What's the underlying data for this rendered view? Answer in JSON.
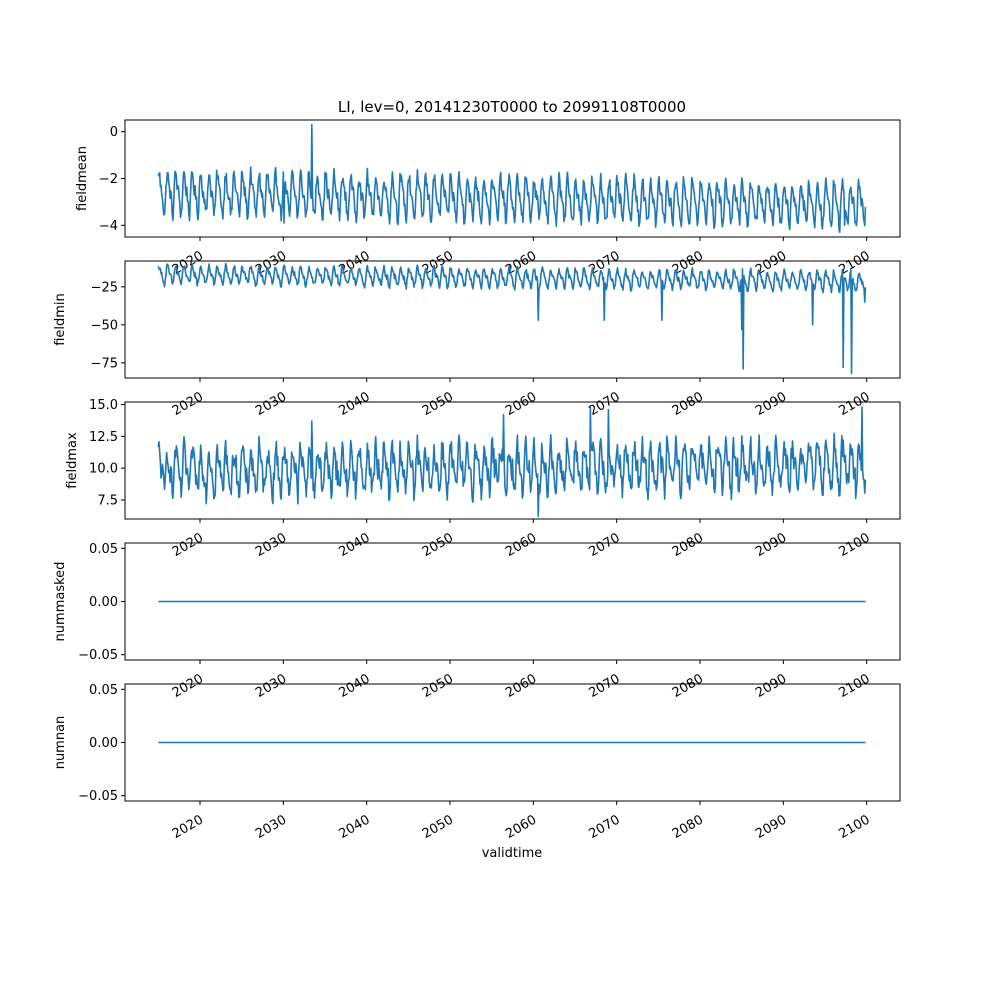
{
  "chart_data": {
    "type": "line",
    "title": "LI, lev=0, 20141230T0000 to 20991108T0000",
    "xlabel": "validtime",
    "x_start": "2014-12-30",
    "x_end": "2099-11-08",
    "xlim": [
      "2011-01-01",
      "2104-01-01"
    ],
    "x_ticks": [
      "2020",
      "2030",
      "2040",
      "2050",
      "2060",
      "2070",
      "2080",
      "2090",
      "2100"
    ],
    "grid": false,
    "line_color": "#1f77b4",
    "panels": [
      {
        "ylabel": "fieldmean",
        "ylim": [
          -4.5,
          0.5
        ],
        "y_ticks": [
          "−4",
          "−2",
          "0"
        ],
        "y_tick_values": [
          -4,
          -2,
          0
        ],
        "series": [
          {
            "kind": "seasonal",
            "base": -2.6,
            "amplitude": 0.75,
            "noise": 0.3,
            "trend_per_decade": -0.06,
            "extremes": [
              {
                "x": "2033-06-15",
                "y": 0.3
              },
              {
                "x": "2030-02-01",
                "y": -3.9
              },
              {
                "x": "2096-10-01",
                "y": -4.3
              },
              {
                "x": "2097-05-01",
                "y": -4.0
              }
            ]
          }
        ]
      },
      {
        "ylabel": "fieldmin",
        "ylim": [
          -85,
          -8
        ],
        "y_ticks": [
          "−75",
          "−50",
          "−25"
        ],
        "y_tick_values": [
          -75,
          -50,
          -25
        ],
        "series": [
          {
            "kind": "seasonal",
            "base": -17,
            "amplitude": 5,
            "noise": 2,
            "trend_per_decade": -0.5,
            "extremes": [
              {
                "x": "2060-08-01",
                "y": -47
              },
              {
                "x": "2068-07-01",
                "y": -47
              },
              {
                "x": "2075-06-01",
                "y": -47
              },
              {
                "x": "2085-01-01",
                "y": -53
              },
              {
                "x": "2085-03-01",
                "y": -79
              },
              {
                "x": "2093-07-01",
                "y": -50
              },
              {
                "x": "2097-03-01",
                "y": -78
              },
              {
                "x": "2098-03-01",
                "y": -82
              },
              {
                "x": "2099-10-01",
                "y": -35
              }
            ]
          }
        ]
      },
      {
        "ylabel": "fieldmax",
        "ylim": [
          6,
          15.2
        ],
        "y_ticks": [
          "7.5",
          "10.0",
          "12.5",
          "15.0"
        ],
        "y_tick_values": [
          7.5,
          10.0,
          12.5,
          15.0
        ],
        "series": [
          {
            "kind": "seasonal",
            "base": 9.8,
            "amplitude": 1.4,
            "noise": 1.0,
            "trend_per_decade": 0.05,
            "extremes": [
              {
                "x": "2033-06-01",
                "y": 13.7
              },
              {
                "x": "2056-06-01",
                "y": 14.2
              },
              {
                "x": "2060-08-01",
                "y": 6.2
              },
              {
                "x": "2066-11-01",
                "y": 14.8
              },
              {
                "x": "2069-01-01",
                "y": 14.6
              },
              {
                "x": "2099-06-01",
                "y": 14.8
              }
            ]
          }
        ]
      },
      {
        "ylabel": "nummasked",
        "ylim": [
          -0.055,
          0.055
        ],
        "y_ticks": [
          "−0.05",
          "0.00",
          "0.05"
        ],
        "y_tick_values": [
          -0.05,
          0.0,
          0.05
        ],
        "series": [
          {
            "kind": "constant",
            "value": 0.0
          }
        ]
      },
      {
        "ylabel": "numnan",
        "ylim": [
          -0.055,
          0.055
        ],
        "y_ticks": [
          "−0.05",
          "0.00",
          "0.05"
        ],
        "y_tick_values": [
          -0.05,
          0.0,
          0.05
        ],
        "series": [
          {
            "kind": "constant",
            "value": 0.0
          }
        ]
      }
    ]
  }
}
